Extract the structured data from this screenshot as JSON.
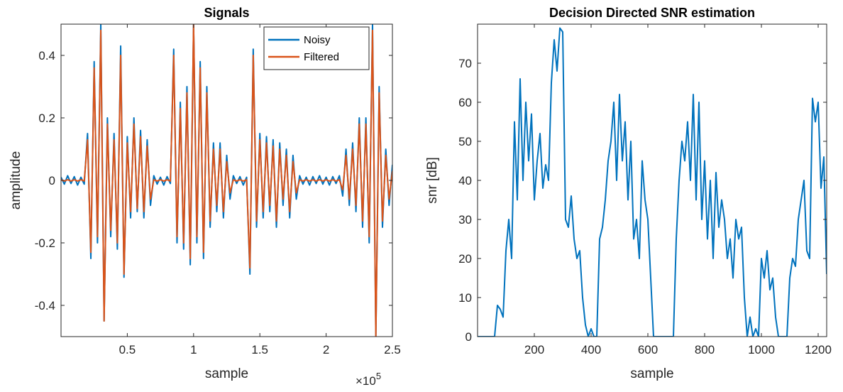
{
  "chart_data": [
    {
      "type": "line",
      "title": "Signals",
      "xlabel": "sample",
      "ylabel": "amplitude",
      "x_multiplier": {
        "base": "×10",
        "exponent": "5"
      },
      "xlim": [
        0,
        250000
      ],
      "ylim": [
        -0.5,
        0.5
      ],
      "xticks": [
        {
          "value": 50000,
          "label": "0.5"
        },
        {
          "value": 100000,
          "label": "1"
        },
        {
          "value": 150000,
          "label": "1.5"
        },
        {
          "value": 200000,
          "label": "2"
        },
        {
          "value": 250000,
          "label": "2.5"
        }
      ],
      "yticks": [
        -0.4,
        -0.2,
        0,
        0.2,
        0.4
      ],
      "legend": "northeast",
      "x": [
        0,
        2500,
        5000,
        7500,
        10000,
        12500,
        15000,
        17500,
        20000,
        22500,
        25000,
        27500,
        30000,
        32500,
        35000,
        37500,
        40000,
        42500,
        45000,
        47500,
        50000,
        52500,
        55000,
        57500,
        60000,
        62500,
        65000,
        67500,
        70000,
        72500,
        75000,
        77500,
        80000,
        82500,
        85000,
        87500,
        90000,
        92500,
        95000,
        97500,
        100000,
        102500,
        105000,
        107500,
        110000,
        112500,
        115000,
        117500,
        120000,
        122500,
        125000,
        127500,
        130000,
        132500,
        135000,
        137500,
        140000,
        142500,
        145000,
        147500,
        150000,
        152500,
        155000,
        157500,
        160000,
        162500,
        165000,
        167500,
        170000,
        172500,
        175000,
        177500,
        180000,
        182500,
        185000,
        187500,
        190000,
        192500,
        195000,
        197500,
        200000,
        202500,
        205000,
        207500,
        210000,
        212500,
        215000,
        217500,
        220000,
        222500,
        225000,
        227500,
        230000,
        232500,
        235000,
        237500,
        240000,
        242500,
        245000,
        247500,
        250000
      ],
      "series": [
        {
          "name": "Noisy",
          "color": "#0072BD",
          "values": [
            0.01,
            -0.012,
            0.015,
            -0.01,
            0.012,
            -0.015,
            0.01,
            -0.012,
            0.15,
            -0.25,
            0.38,
            -0.2,
            0.5,
            -0.45,
            0.2,
            -0.18,
            0.15,
            -0.22,
            0.43,
            -0.31,
            0.14,
            -0.12,
            0.2,
            -0.1,
            0.16,
            -0.12,
            0.13,
            -0.08,
            0.015,
            -0.012,
            0.01,
            -0.015,
            0.012,
            -0.01,
            0.42,
            -0.2,
            0.25,
            -0.22,
            0.3,
            -0.27,
            0.5,
            -0.2,
            0.38,
            -0.25,
            0.3,
            -0.15,
            0.12,
            -0.1,
            0.12,
            -0.12,
            0.08,
            -0.06,
            0.015,
            -0.01,
            0.012,
            -0.015,
            0.01,
            -0.3,
            0.42,
            -0.15,
            0.15,
            -0.12,
            0.14,
            -0.1,
            0.13,
            -0.15,
            0.12,
            -0.08,
            0.1,
            -0.12,
            0.08,
            -0.06,
            0.015,
            -0.012,
            0.01,
            -0.015,
            0.012,
            -0.01,
            0.015,
            -0.012,
            0.01,
            -0.015,
            0.012,
            -0.01,
            0.015,
            -0.05,
            0.1,
            -0.08,
            0.12,
            -0.1,
            0.2,
            -0.15,
            0.2,
            -0.2,
            0.5,
            -0.5,
            0.3,
            -0.15,
            0.1,
            -0.08,
            0.05
          ]
        },
        {
          "name": "Filtered",
          "color": "#D95319",
          "values": [
            0.002,
            -0.002,
            0.002,
            -0.002,
            0.002,
            -0.002,
            0.002,
            -0.002,
            0.13,
            -0.23,
            0.36,
            -0.18,
            0.48,
            -0.45,
            0.18,
            -0.16,
            0.13,
            -0.2,
            0.4,
            -0.3,
            0.12,
            -0.1,
            0.18,
            -0.09,
            0.14,
            -0.1,
            0.11,
            -0.06,
            0.002,
            -0.002,
            0.002,
            -0.002,
            0.002,
            -0.002,
            0.4,
            -0.18,
            0.23,
            -0.2,
            0.28,
            -0.25,
            0.5,
            -0.18,
            0.36,
            -0.23,
            0.28,
            -0.13,
            0.1,
            -0.08,
            0.1,
            -0.1,
            0.06,
            -0.04,
            0.002,
            -0.002,
            0.002,
            -0.002,
            0.002,
            -0.28,
            0.4,
            -0.13,
            0.13,
            -0.1,
            0.12,
            -0.08,
            0.11,
            -0.13,
            0.1,
            -0.06,
            0.08,
            -0.1,
            0.06,
            -0.04,
            0.002,
            -0.002,
            0.002,
            -0.002,
            0.002,
            -0.002,
            0.002,
            -0.002,
            0.002,
            -0.002,
            0.002,
            -0.002,
            0.002,
            -0.03,
            0.08,
            -0.06,
            0.1,
            -0.08,
            0.18,
            -0.13,
            0.18,
            -0.18,
            0.48,
            -0.5,
            0.28,
            -0.13,
            0.08,
            -0.06,
            0.03
          ]
        }
      ]
    },
    {
      "type": "line",
      "title": "Decision Directed SNR estimation",
      "xlabel": "sample",
      "ylabel": "snr [dB]",
      "xlim": [
        0,
        1230
      ],
      "ylim": [
        0,
        80
      ],
      "xticks": [
        200,
        400,
        600,
        800,
        1000,
        1200
      ],
      "yticks": [
        0,
        10,
        20,
        30,
        40,
        50,
        60,
        70
      ],
      "x": [
        0,
        10,
        20,
        30,
        40,
        50,
        60,
        70,
        80,
        90,
        100,
        110,
        120,
        130,
        140,
        150,
        160,
        170,
        180,
        190,
        200,
        210,
        220,
        230,
        240,
        250,
        260,
        270,
        280,
        290,
        300,
        310,
        320,
        330,
        340,
        350,
        360,
        370,
        380,
        390,
        400,
        410,
        420,
        430,
        440,
        450,
        460,
        470,
        480,
        490,
        500,
        510,
        520,
        530,
        540,
        550,
        560,
        570,
        580,
        590,
        600,
        610,
        620,
        630,
        640,
        650,
        660,
        670,
        680,
        690,
        700,
        710,
        720,
        730,
        740,
        750,
        760,
        770,
        780,
        790,
        800,
        810,
        820,
        830,
        840,
        850,
        860,
        870,
        880,
        890,
        900,
        910,
        920,
        930,
        940,
        950,
        960,
        970,
        980,
        990,
        1000,
        1010,
        1020,
        1030,
        1040,
        1050,
        1060,
        1070,
        1080,
        1090,
        1100,
        1110,
        1120,
        1130,
        1140,
        1150,
        1160,
        1170,
        1180,
        1190,
        1200,
        1210,
        1220,
        1230
      ],
      "series": [
        {
          "name": "snr",
          "color": "#0072BD",
          "values": [
            0,
            0,
            0,
            0,
            0,
            0,
            0,
            8,
            7,
            5,
            22,
            30,
            20,
            55,
            35,
            66,
            40,
            60,
            45,
            57,
            35,
            45,
            52,
            38,
            44,
            40,
            65,
            76,
            68,
            79,
            78,
            30,
            28,
            36,
            25,
            20,
            22,
            10,
            3,
            0,
            2,
            0,
            0,
            25,
            28,
            35,
            45,
            50,
            60,
            40,
            62,
            45,
            55,
            35,
            50,
            25,
            30,
            20,
            45,
            35,
            30,
            15,
            0,
            0,
            0,
            0,
            0,
            0,
            0,
            0,
            25,
            40,
            50,
            45,
            55,
            40,
            62,
            35,
            60,
            30,
            45,
            25,
            40,
            20,
            42,
            28,
            35,
            30,
            20,
            25,
            15,
            30,
            25,
            28,
            10,
            0,
            5,
            0,
            2,
            0,
            20,
            15,
            22,
            12,
            15,
            5,
            0,
            0,
            0,
            0,
            15,
            20,
            18,
            30,
            35,
            40,
            22,
            20,
            61,
            55,
            60,
            38,
            46,
            16
          ]
        }
      ]
    }
  ]
}
